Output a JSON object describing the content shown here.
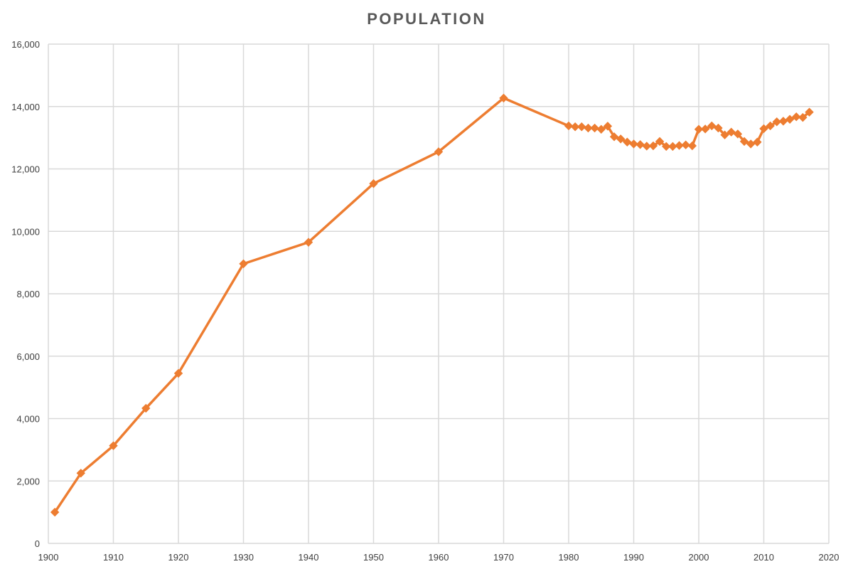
{
  "chart_data": {
    "type": "line",
    "title": "POPULATION",
    "xlabel": "",
    "ylabel": "",
    "xlim": [
      1900,
      2020
    ],
    "ylim": [
      0,
      16000
    ],
    "x_ticks": [
      1900,
      1910,
      1920,
      1930,
      1940,
      1950,
      1960,
      1970,
      1980,
      1990,
      2000,
      2010,
      2020
    ],
    "y_ticks": [
      0,
      2000,
      4000,
      6000,
      8000,
      10000,
      12000,
      14000,
      16000
    ],
    "y_tick_labels": [
      "0",
      "2,000",
      "4,000",
      "6,000",
      "8,000",
      "10,000",
      "12,000",
      "14,000",
      "16,000"
    ],
    "grid": true,
    "legend": "none",
    "colors": {
      "series": "#ED7D31",
      "grid": "#D9D9D9",
      "title": "#595959",
      "tick_label": "#404040"
    },
    "series": [
      {
        "marker": "diamond",
        "x": [
          1901,
          1905,
          1910,
          1915,
          1920,
          1930,
          1940,
          1950,
          1960,
          1970,
          1980,
          1981,
          1982,
          1983,
          1984,
          1985,
          1986,
          1987,
          1988,
          1989,
          1990,
          1991,
          1992,
          1993,
          1994,
          1995,
          1996,
          1997,
          1998,
          1999,
          2000,
          2001,
          2002,
          2003,
          2004,
          2005,
          2006,
          2007,
          2008,
          2009,
          2010,
          2011,
          2012,
          2013,
          2014,
          2015,
          2016,
          2017
        ],
        "values": [
          1000,
          2250,
          3130,
          4330,
          5450,
          8960,
          9650,
          11530,
          12550,
          14270,
          13380,
          13350,
          13350,
          13310,
          13310,
          13270,
          13370,
          13030,
          12960,
          12860,
          12800,
          12780,
          12730,
          12740,
          12880,
          12720,
          12720,
          12750,
          12770,
          12740,
          13270,
          13280,
          13380,
          13310,
          13090,
          13180,
          13120,
          12880,
          12800,
          12860,
          13290,
          13380,
          13510,
          13530,
          13590,
          13670,
          13650,
          13820
        ]
      }
    ]
  }
}
